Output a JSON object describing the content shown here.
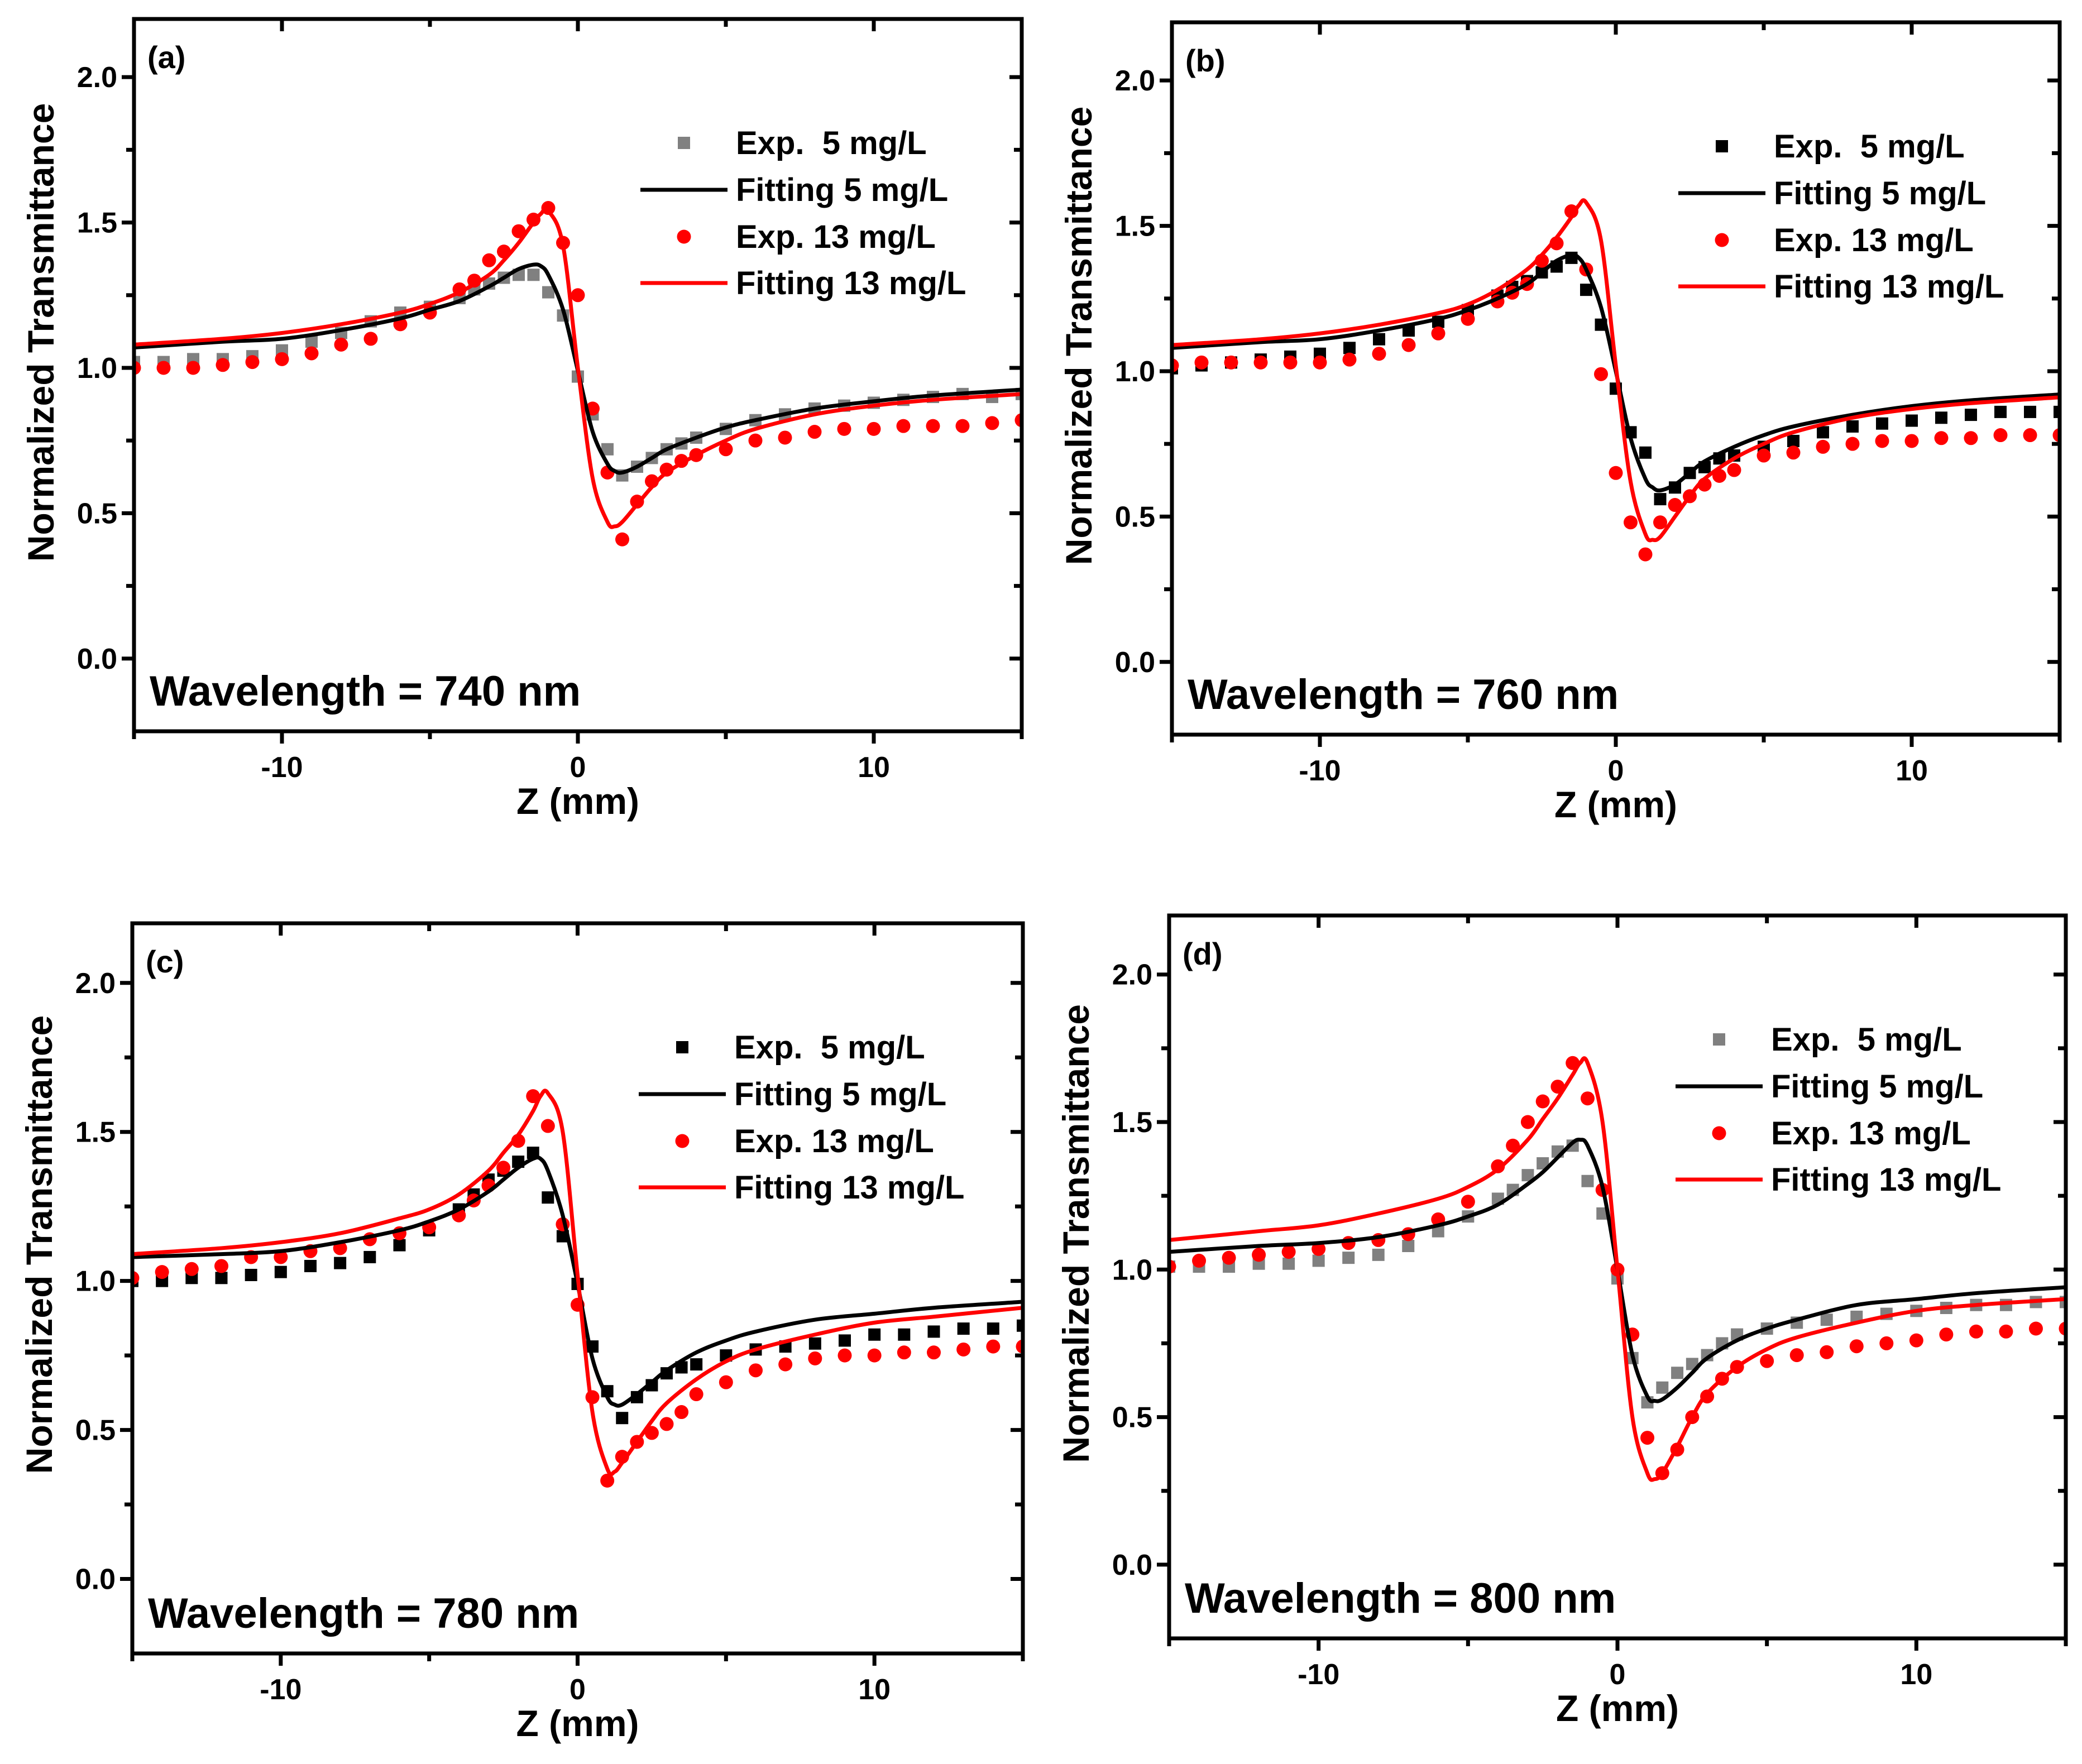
{
  "chart_data": [
    {
      "type": "line",
      "panel_label": "(a)",
      "annotation": "Wavelength = 740 nm",
      "xlabel": "Z (mm)",
      "ylabel": "Normalized Transmittance",
      "xlim": [
        -15,
        15
      ],
      "ylim": [
        -0.25,
        2.2
      ],
      "xticks": [
        {
          "v": -10,
          "label": "-10"
        },
        {
          "v": 0,
          "label": "0"
        },
        {
          "v": 10,
          "label": "10"
        }
      ],
      "yticks": [
        {
          "v": 0,
          "label": "0.0"
        },
        {
          "v": 0.5,
          "label": "0.5"
        },
        {
          "v": 1,
          "label": "1.0"
        },
        {
          "v": 1.5,
          "label": "1.5"
        },
        {
          "v": 2,
          "label": "2.0"
        }
      ],
      "legend_position": "top-right",
      "x_exp": [
        -15,
        -14,
        -13,
        -12,
        -11,
        -10,
        -9,
        -8,
        -7,
        -6,
        -5,
        -4,
        -3.5,
        -3,
        -2.5,
        -2,
        -1.5,
        -1,
        -0.5,
        0,
        0.5,
        1,
        1.5,
        2,
        2.5,
        3,
        3.5,
        4,
        5,
        6,
        7,
        8,
        9,
        10,
        11,
        12,
        13,
        14,
        15
      ],
      "x_fit": [
        -15,
        -12,
        -10,
        -8,
        -6,
        -5,
        -4,
        -3,
        -2.5,
        -2,
        -1.5,
        -1.25,
        -1,
        -0.5,
        0,
        0.5,
        1,
        1.25,
        1.5,
        2,
        2.5,
        3,
        4,
        5,
        6,
        8,
        10,
        12,
        15
      ],
      "series": [
        {
          "name": "Exp.  5 mg/L",
          "kind": "scatter",
          "marker": "square",
          "color": "#808080",
          "x_ref": "x_exp",
          "y": [
            1.02,
            1.02,
            1.03,
            1.03,
            1.04,
            1.06,
            1.09,
            1.12,
            1.16,
            1.19,
            1.21,
            1.24,
            1.27,
            1.29,
            1.31,
            1.32,
            1.32,
            1.26,
            1.18,
            0.97,
            0.84,
            0.72,
            0.63,
            0.66,
            0.69,
            0.72,
            0.74,
            0.76,
            0.79,
            0.82,
            0.84,
            0.86,
            0.87,
            0.88,
            0.89,
            0.9,
            0.91,
            0.9,
            0.91
          ]
        },
        {
          "name": "Fitting 5 mg/L",
          "kind": "line",
          "color": "#000000",
          "x_ref": "x_fit",
          "y": [
            1.07,
            1.09,
            1.1,
            1.13,
            1.17,
            1.2,
            1.23,
            1.28,
            1.31,
            1.34,
            1.355,
            1.35,
            1.32,
            1.2,
            0.99,
            0.78,
            0.67,
            0.645,
            0.64,
            0.66,
            0.69,
            0.72,
            0.76,
            0.795,
            0.82,
            0.86,
            0.885,
            0.905,
            0.925
          ]
        },
        {
          "name": "Exp. 13 mg/L",
          "kind": "scatter",
          "marker": "circle",
          "color": "#ff0000",
          "x_ref": "x_exp",
          "y": [
            1.0,
            1.0,
            1.0,
            1.01,
            1.02,
            1.03,
            1.05,
            1.08,
            1.1,
            1.15,
            1.19,
            1.27,
            1.3,
            1.37,
            1.4,
            1.47,
            1.51,
            1.55,
            1.43,
            1.25,
            0.86,
            0.64,
            0.41,
            0.54,
            0.61,
            0.65,
            0.68,
            0.7,
            0.72,
            0.75,
            0.76,
            0.78,
            0.79,
            0.79,
            0.8,
            0.8,
            0.8,
            0.81,
            0.82
          ]
        },
        {
          "name": "Fitting 13 mg/L",
          "kind": "line",
          "color": "#ff0000",
          "x_ref": "x_fit",
          "y": [
            1.08,
            1.1,
            1.12,
            1.15,
            1.19,
            1.22,
            1.26,
            1.32,
            1.37,
            1.43,
            1.5,
            1.53,
            1.54,
            1.42,
            1.0,
            0.62,
            0.47,
            0.455,
            0.47,
            0.53,
            0.59,
            0.64,
            0.7,
            0.75,
            0.79,
            0.84,
            0.87,
            0.89,
            0.91
          ]
        }
      ]
    },
    {
      "type": "line",
      "panel_label": "(b)",
      "annotation": "Wavelength = 760 nm",
      "xlabel": "Z (mm)",
      "ylabel": "Normalized Transmittance",
      "xlim": [
        -15,
        15
      ],
      "ylim": [
        -0.25,
        2.2
      ],
      "xticks": [
        {
          "v": -10,
          "label": "-10"
        },
        {
          "v": 0,
          "label": "0"
        },
        {
          "v": 10,
          "label": "10"
        }
      ],
      "yticks": [
        {
          "v": 0,
          "label": "0.0"
        },
        {
          "v": 0.5,
          "label": "0.5"
        },
        {
          "v": 1,
          "label": "1.0"
        },
        {
          "v": 1.5,
          "label": "1.5"
        },
        {
          "v": 2,
          "label": "2.0"
        }
      ],
      "legend_position": "top-right",
      "x_exp": [
        -15,
        -14,
        -13,
        -12,
        -11,
        -10,
        -9,
        -8,
        -7,
        -6,
        -5,
        -4,
        -3.5,
        -3,
        -2.5,
        -2,
        -1.5,
        -1,
        -0.5,
        0,
        0.5,
        1,
        1.5,
        2,
        2.5,
        3,
        3.5,
        4,
        5,
        6,
        7,
        8,
        9,
        10,
        11,
        12,
        13,
        14,
        15
      ],
      "x_fit": [
        -15,
        -12,
        -10,
        -8,
        -6,
        -5,
        -4,
        -3,
        -2.5,
        -2,
        -1.5,
        -1.25,
        -1,
        -0.5,
        0,
        0.5,
        1,
        1.25,
        1.5,
        2,
        2.5,
        3,
        4,
        5,
        6,
        8,
        10,
        12,
        15
      ],
      "series": [
        {
          "name": "Exp.  5 mg/L",
          "kind": "scatter",
          "marker": "square",
          "color": "#000000",
          "x_ref": "x_exp",
          "y": [
            1.01,
            1.02,
            1.03,
            1.04,
            1.05,
            1.06,
            1.08,
            1.11,
            1.14,
            1.17,
            1.21,
            1.26,
            1.29,
            1.31,
            1.34,
            1.36,
            1.39,
            1.28,
            1.16,
            0.94,
            0.79,
            0.72,
            0.56,
            0.6,
            0.65,
            0.67,
            0.7,
            0.71,
            0.74,
            0.76,
            0.79,
            0.81,
            0.82,
            0.83,
            0.84,
            0.85,
            0.86,
            0.86,
            0.86
          ]
        },
        {
          "name": "Fitting 5 mg/L",
          "kind": "line",
          "color": "#000000",
          "x_ref": "x_fit",
          "y": [
            1.08,
            1.1,
            1.11,
            1.14,
            1.18,
            1.21,
            1.25,
            1.3,
            1.34,
            1.38,
            1.4,
            1.39,
            1.35,
            1.22,
            1.0,
            0.77,
            0.63,
            0.6,
            0.59,
            0.61,
            0.65,
            0.69,
            0.74,
            0.78,
            0.81,
            0.85,
            0.88,
            0.9,
            0.92
          ]
        },
        {
          "name": "Exp. 13 mg/L",
          "kind": "scatter",
          "marker": "circle",
          "color": "#ff0000",
          "x_ref": "x_exp",
          "y": [
            1.02,
            1.03,
            1.03,
            1.03,
            1.03,
            1.03,
            1.04,
            1.06,
            1.09,
            1.13,
            1.18,
            1.24,
            1.27,
            1.3,
            1.38,
            1.44,
            1.55,
            1.35,
            0.99,
            0.65,
            0.48,
            0.37,
            0.48,
            0.54,
            0.57,
            0.61,
            0.64,
            0.66,
            0.71,
            0.72,
            0.74,
            0.75,
            0.76,
            0.76,
            0.77,
            0.77,
            0.78,
            0.78,
            0.78
          ]
        },
        {
          "name": "Fitting 13 mg/L",
          "kind": "line",
          "color": "#ff0000",
          "x_ref": "x_fit",
          "y": [
            1.09,
            1.11,
            1.13,
            1.16,
            1.2,
            1.23,
            1.28,
            1.35,
            1.4,
            1.46,
            1.53,
            1.57,
            1.58,
            1.45,
            1.02,
            0.62,
            0.44,
            0.42,
            0.43,
            0.5,
            0.57,
            0.63,
            0.7,
            0.75,
            0.79,
            0.84,
            0.87,
            0.89,
            0.91
          ]
        }
      ]
    },
    {
      "type": "line",
      "panel_label": "(c)",
      "annotation": "Wavelength = 780 nm",
      "xlabel": "Z (mm)",
      "ylabel": "Normalized Transmittance",
      "xlim": [
        -15,
        15
      ],
      "ylim": [
        -0.25,
        2.2
      ],
      "xticks": [
        {
          "v": -10,
          "label": "-10"
        },
        {
          "v": 0,
          "label": "0"
        },
        {
          "v": 10,
          "label": "10"
        }
      ],
      "yticks": [
        {
          "v": 0,
          "label": "0.0"
        },
        {
          "v": 0.5,
          "label": "0.5"
        },
        {
          "v": 1,
          "label": "1.0"
        },
        {
          "v": 1.5,
          "label": "1.5"
        },
        {
          "v": 2,
          "label": "2.0"
        }
      ],
      "legend_position": "top-right",
      "x_exp": [
        -15,
        -14,
        -13,
        -12,
        -11,
        -10,
        -9,
        -8,
        -7,
        -6,
        -5,
        -4,
        -3.5,
        -3,
        -2.5,
        -2,
        -1.5,
        -1,
        -0.5,
        0,
        0.5,
        1,
        1.5,
        2,
        2.5,
        3,
        3.5,
        4,
        5,
        6,
        7,
        8,
        9,
        10,
        11,
        12,
        13,
        14,
        15
      ],
      "x_fit": [
        -15,
        -12,
        -10,
        -8,
        -6,
        -5,
        -4,
        -3,
        -2.5,
        -2,
        -1.5,
        -1.25,
        -1,
        -0.5,
        0,
        0.5,
        1,
        1.25,
        1.5,
        2,
        2.5,
        3,
        4,
        5,
        6,
        8,
        10,
        12,
        15
      ],
      "series": [
        {
          "name": "Exp.  5 mg/L",
          "kind": "scatter",
          "marker": "square",
          "color": "#000000",
          "x_ref": "x_exp",
          "y": [
            1.0,
            1.0,
            1.01,
            1.01,
            1.02,
            1.03,
            1.05,
            1.06,
            1.08,
            1.12,
            1.17,
            1.24,
            1.29,
            1.34,
            1.37,
            1.4,
            1.43,
            1.28,
            1.15,
            0.99,
            0.78,
            0.63,
            0.54,
            0.61,
            0.65,
            0.69,
            0.71,
            0.72,
            0.75,
            0.77,
            0.78,
            0.79,
            0.8,
            0.82,
            0.82,
            0.83,
            0.84,
            0.84,
            0.85
          ]
        },
        {
          "name": "Fitting 5 mg/L",
          "kind": "line",
          "color": "#000000",
          "x_ref": "x_fit",
          "y": [
            1.08,
            1.09,
            1.1,
            1.13,
            1.17,
            1.2,
            1.24,
            1.3,
            1.34,
            1.38,
            1.41,
            1.41,
            1.37,
            1.22,
            0.99,
            0.74,
            0.61,
            0.585,
            0.585,
            0.62,
            0.66,
            0.7,
            0.76,
            0.8,
            0.83,
            0.87,
            0.89,
            0.91,
            0.93
          ]
        },
        {
          "name": "Exp. 13 mg/L",
          "kind": "scatter",
          "marker": "circle",
          "color": "#ff0000",
          "x_ref": "x_exp",
          "y": [
            1.01,
            1.03,
            1.04,
            1.05,
            1.08,
            1.08,
            1.1,
            1.11,
            1.14,
            1.16,
            1.18,
            1.22,
            1.27,
            1.32,
            1.38,
            1.47,
            1.62,
            1.52,
            1.19,
            0.92,
            0.61,
            0.33,
            0.41,
            0.46,
            0.49,
            0.52,
            0.56,
            0.62,
            0.66,
            0.7,
            0.72,
            0.74,
            0.75,
            0.75,
            0.76,
            0.76,
            0.77,
            0.78,
            0.78
          ]
        },
        {
          "name": "Fitting 13 mg/L",
          "kind": "line",
          "color": "#ff0000",
          "x_ref": "x_fit",
          "y": [
            1.09,
            1.11,
            1.13,
            1.16,
            1.21,
            1.24,
            1.29,
            1.37,
            1.43,
            1.49,
            1.57,
            1.62,
            1.63,
            1.5,
            1.02,
            0.56,
            0.37,
            0.36,
            0.39,
            0.46,
            0.53,
            0.59,
            0.67,
            0.73,
            0.77,
            0.82,
            0.86,
            0.88,
            0.91
          ]
        }
      ]
    },
    {
      "type": "line",
      "panel_label": "(d)",
      "annotation": "Wavelength = 800 nm",
      "xlabel": "Z (mm)",
      "ylabel": "Normalized Transmittance",
      "xlim": [
        -15,
        15
      ],
      "ylim": [
        -0.25,
        2.2
      ],
      "xticks": [
        {
          "v": -10,
          "label": "-10"
        },
        {
          "v": 0,
          "label": "0"
        },
        {
          "v": 10,
          "label": "10"
        }
      ],
      "yticks": [
        {
          "v": 0,
          "label": "0.0"
        },
        {
          "v": 0.5,
          "label": "0.5"
        },
        {
          "v": 1,
          "label": "1.0"
        },
        {
          "v": 1.5,
          "label": "1.5"
        },
        {
          "v": 2,
          "label": "2.0"
        }
      ],
      "legend_position": "top-right",
      "x_exp": [
        -15,
        -14,
        -13,
        -12,
        -11,
        -10,
        -9,
        -8,
        -7,
        -6,
        -5,
        -4,
        -3.5,
        -3,
        -2.5,
        -2,
        -1.5,
        -1,
        -0.5,
        0,
        0.5,
        1,
        1.5,
        2,
        2.5,
        3,
        3.5,
        4,
        5,
        6,
        7,
        8,
        9,
        10,
        11,
        12,
        13,
        14,
        15
      ],
      "x_fit": [
        -15,
        -12,
        -10,
        -8,
        -6,
        -5,
        -4,
        -3,
        -2.5,
        -2,
        -1.5,
        -1.25,
        -1,
        -0.5,
        0,
        0.5,
        1,
        1.25,
        1.5,
        2,
        2.5,
        3,
        4,
        5,
        6,
        8,
        10,
        12,
        15
      ],
      "series": [
        {
          "name": "Exp.  5 mg/L",
          "kind": "scatter",
          "marker": "square",
          "color": "#808080",
          "x_ref": "x_exp",
          "y": [
            1.01,
            1.01,
            1.01,
            1.02,
            1.02,
            1.03,
            1.04,
            1.05,
            1.08,
            1.13,
            1.18,
            1.24,
            1.27,
            1.32,
            1.36,
            1.4,
            1.42,
            1.3,
            1.19,
            0.97,
            0.7,
            0.55,
            0.6,
            0.65,
            0.68,
            0.71,
            0.75,
            0.78,
            0.8,
            0.82,
            0.83,
            0.84,
            0.85,
            0.86,
            0.87,
            0.88,
            0.88,
            0.89,
            0.89
          ]
        },
        {
          "name": "Fitting 5 mg/L",
          "kind": "line",
          "color": "#000000",
          "x_ref": "x_fit",
          "y": [
            1.06,
            1.08,
            1.09,
            1.11,
            1.15,
            1.18,
            1.22,
            1.29,
            1.33,
            1.38,
            1.43,
            1.44,
            1.42,
            1.28,
            1.0,
            0.71,
            0.57,
            0.555,
            0.56,
            0.6,
            0.65,
            0.7,
            0.76,
            0.8,
            0.83,
            0.88,
            0.9,
            0.92,
            0.94
          ]
        },
        {
          "name": "Exp. 13 mg/L",
          "kind": "scatter",
          "marker": "circle",
          "color": "#ff0000",
          "x_ref": "x_exp",
          "y": [
            1.01,
            1.03,
            1.04,
            1.05,
            1.06,
            1.07,
            1.09,
            1.1,
            1.12,
            1.17,
            1.23,
            1.35,
            1.42,
            1.5,
            1.57,
            1.62,
            1.7,
            1.58,
            1.27,
            1.0,
            0.78,
            0.43,
            0.31,
            0.39,
            0.5,
            0.57,
            0.63,
            0.67,
            0.69,
            0.71,
            0.72,
            0.74,
            0.75,
            0.76,
            0.78,
            0.79,
            0.79,
            0.8,
            0.8
          ]
        },
        {
          "name": "Fitting 13 mg/L",
          "kind": "line",
          "color": "#ff0000",
          "x_ref": "x_fit",
          "y": [
            1.1,
            1.13,
            1.15,
            1.19,
            1.24,
            1.28,
            1.34,
            1.44,
            1.51,
            1.58,
            1.66,
            1.7,
            1.7,
            1.5,
            1.0,
            0.5,
            0.31,
            0.29,
            0.31,
            0.4,
            0.5,
            0.58,
            0.67,
            0.73,
            0.77,
            0.82,
            0.86,
            0.88,
            0.9
          ]
        }
      ]
    }
  ]
}
